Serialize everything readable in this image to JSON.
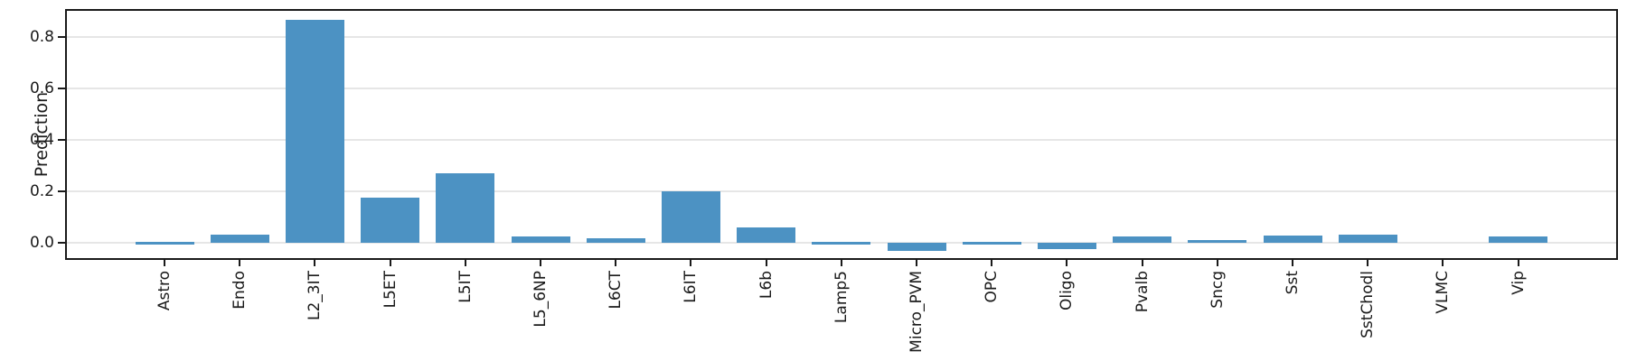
{
  "colors": {
    "bar": "#4c92c3",
    "grid": "#e6e6e6",
    "spine": "#1a1a1a",
    "text": "#1a1a1a",
    "background": "#ffffff"
  },
  "chart_data": {
    "type": "bar",
    "title": "",
    "xlabel": "",
    "ylabel": "Prediction",
    "categories": [
      "Astro",
      "Endo",
      "L2_3IT",
      "L5ET",
      "L5IT",
      "L5_6NP",
      "L6CT",
      "L6IT",
      "L6b",
      "Lamp5",
      "Micro_PVM",
      "OPC",
      "Oligo",
      "Pvalb",
      "Sncg",
      "Sst",
      "SstChodl",
      "VLMC",
      "Vip"
    ],
    "values": [
      -0.005,
      0.03,
      0.865,
      0.175,
      0.27,
      0.023,
      0.016,
      0.2,
      0.06,
      -0.004,
      -0.031,
      -0.006,
      -0.023,
      0.024,
      0.011,
      0.028,
      0.032,
      0.0,
      0.025
    ],
    "yticks": [
      0.0,
      0.2,
      0.4,
      0.6,
      0.8
    ],
    "ytick_labels": [
      "0.0",
      "0.2",
      "0.4",
      "0.6",
      "0.8"
    ],
    "ylim": [
      -0.067,
      0.909
    ],
    "grid": "horizontal",
    "legend": "none",
    "bar_orientation": "vertical",
    "xtick_label_rotation_deg": 90
  }
}
